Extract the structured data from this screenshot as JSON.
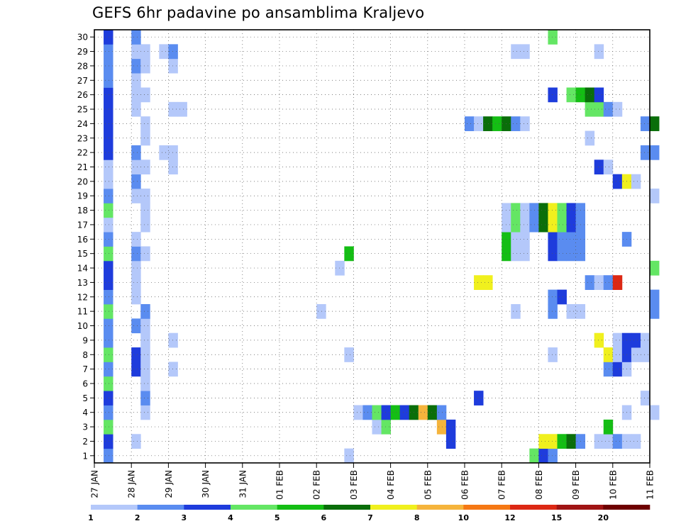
{
  "title": "GEFS 6hr padavine po ansamblima Kraljevo",
  "chart_data": {
    "type": "heatmap",
    "title": "GEFS 6hr padavine po ansamblima Kraljevo",
    "x_start": "2014-01-27 00",
    "x_end": "2014-02-11 00",
    "x_step_hours": 6,
    "x_tick_labels": [
      "27 JAN",
      "28 JAN",
      "29 JAN",
      "30 JAN",
      "31 JAN",
      "01 FEB",
      "02 FEB",
      "03 FEB",
      "04 FEB",
      "05 FEB",
      "06 FEB",
      "07 FEB",
      "08 FEB",
      "09 FEB",
      "10 FEB",
      "11 FEB"
    ],
    "y_tick_labels": [
      "1",
      "2",
      "3",
      "4",
      "5",
      "6",
      "7",
      "8",
      "9",
      "10",
      "11",
      "12",
      "13",
      "14",
      "15",
      "16",
      "17",
      "18",
      "19",
      "20",
      "21",
      "22",
      "23",
      "24",
      "25",
      "26",
      "27",
      "28",
      "29",
      "30"
    ],
    "ylim": [
      0.5,
      30.5
    ],
    "legend_levels": [
      "1",
      "2",
      "3",
      "4",
      "5",
      "6",
      "7",
      "8",
      "10",
      "12",
      "15",
      "20"
    ],
    "legend_colors": [
      "#b4c8fa",
      "#5a8cf0",
      "#1e3cdc",
      "#64e664",
      "#14be14",
      "#0a6e0a",
      "#f0f01e",
      "#f5b43c",
      "#f57814",
      "#dc2814",
      "#a01414",
      "#6e0000"
    ],
    "cells": [
      [
        1,
        0.25,
        2
      ],
      [
        1,
        6.75,
        1
      ],
      [
        1,
        11.75,
        4
      ],
      [
        1,
        12,
        3
      ],
      [
        1,
        12.25,
        2
      ],
      [
        2,
        0.25,
        3
      ],
      [
        2,
        1,
        1
      ],
      [
        2,
        9.5,
        3
      ],
      [
        2,
        12,
        7
      ],
      [
        2,
        12.25,
        7
      ],
      [
        2,
        12.5,
        5
      ],
      [
        2,
        12.75,
        6
      ],
      [
        2,
        13,
        2
      ],
      [
        2,
        13.5,
        1
      ],
      [
        2,
        13.75,
        1
      ],
      [
        2,
        14,
        2
      ],
      [
        2,
        14.25,
        1
      ],
      [
        2,
        14.5,
        1
      ],
      [
        3,
        0.25,
        4
      ],
      [
        3,
        7.5,
        1
      ],
      [
        3,
        7.75,
        4
      ],
      [
        3,
        9.25,
        8
      ],
      [
        3,
        9.5,
        3
      ],
      [
        3,
        13.75,
        5
      ],
      [
        4,
        0.25,
        2
      ],
      [
        4,
        1.25,
        1
      ],
      [
        4,
        7,
        1
      ],
      [
        4,
        7.25,
        2
      ],
      [
        4,
        7.5,
        4
      ],
      [
        4,
        7.75,
        3
      ],
      [
        4,
        8,
        5
      ],
      [
        4,
        8.25,
        3
      ],
      [
        4,
        8.5,
        6
      ],
      [
        4,
        8.75,
        8
      ],
      [
        4,
        9,
        6
      ],
      [
        4,
        9.25,
        2
      ],
      [
        4,
        14.25,
        1
      ],
      [
        4,
        15,
        1
      ],
      [
        5,
        0.25,
        3
      ],
      [
        5,
        1.25,
        2
      ],
      [
        5,
        10.25,
        3
      ],
      [
        5,
        14.75,
        1
      ],
      [
        6,
        0.25,
        4
      ],
      [
        6,
        1.25,
        1
      ],
      [
        7,
        0.25,
        2
      ],
      [
        7,
        1,
        3
      ],
      [
        7,
        1.25,
        1
      ],
      [
        7,
        2,
        1
      ],
      [
        7,
        13.75,
        2
      ],
      [
        7,
        14,
        3
      ],
      [
        7,
        14.25,
        1
      ],
      [
        8,
        0.25,
        4
      ],
      [
        8,
        1,
        3
      ],
      [
        8,
        1.25,
        1
      ],
      [
        8,
        6.75,
        1
      ],
      [
        8,
        12.25,
        1
      ],
      [
        8,
        13.75,
        7
      ],
      [
        8,
        14,
        1
      ],
      [
        8,
        14.25,
        3
      ],
      [
        8,
        14.5,
        1
      ],
      [
        8,
        14.75,
        1
      ],
      [
        9,
        0.25,
        2
      ],
      [
        9,
        1.25,
        1
      ],
      [
        9,
        2,
        1
      ],
      [
        9,
        13.5,
        7
      ],
      [
        9,
        14,
        1
      ],
      [
        9,
        14.25,
        3
      ],
      [
        9,
        14.5,
        3
      ],
      [
        9,
        14.75,
        1
      ],
      [
        10,
        0.25,
        2
      ],
      [
        10,
        1,
        2
      ],
      [
        10,
        1.25,
        1
      ],
      [
        11,
        0.25,
        4
      ],
      [
        11,
        1.25,
        2
      ],
      [
        11,
        6,
        1
      ],
      [
        11,
        11.25,
        1
      ],
      [
        11,
        12.25,
        2
      ],
      [
        11,
        12.75,
        1
      ],
      [
        11,
        13,
        1
      ],
      [
        11,
        15,
        2
      ],
      [
        12,
        0.25,
        2
      ],
      [
        12,
        1,
        1
      ],
      [
        12,
        12.25,
        2
      ],
      [
        12,
        12.5,
        3
      ],
      [
        12,
        15,
        2
      ],
      [
        13,
        0.25,
        3
      ],
      [
        13,
        1,
        1
      ],
      [
        13,
        10.25,
        7
      ],
      [
        13,
        10.5,
        7
      ],
      [
        13,
        13.25,
        2
      ],
      [
        13,
        13.5,
        1
      ],
      [
        13,
        13.75,
        2
      ],
      [
        13,
        14,
        10
      ],
      [
        14,
        0.25,
        3
      ],
      [
        14,
        1,
        1
      ],
      [
        14,
        6.5,
        1
      ],
      [
        14,
        15,
        4
      ],
      [
        15,
        0.25,
        4
      ],
      [
        15,
        1,
        2
      ],
      [
        15,
        1.25,
        1
      ],
      [
        15,
        6.75,
        5
      ],
      [
        15,
        11,
        5
      ],
      [
        15,
        11.25,
        1
      ],
      [
        15,
        11.5,
        1
      ],
      [
        15,
        12.25,
        3
      ],
      [
        15,
        12.5,
        2
      ],
      [
        15,
        12.75,
        2
      ],
      [
        15,
        13,
        2
      ],
      [
        16,
        0.25,
        2
      ],
      [
        16,
        1,
        1
      ],
      [
        16,
        11,
        5
      ],
      [
        16,
        11.25,
        1
      ],
      [
        16,
        11.5,
        1
      ],
      [
        16,
        12.25,
        3
      ],
      [
        16,
        12.5,
        2
      ],
      [
        16,
        12.75,
        2
      ],
      [
        16,
        13,
        2
      ],
      [
        16,
        14.25,
        2
      ],
      [
        17,
        0.25,
        1
      ],
      [
        17,
        1.25,
        1
      ],
      [
        17,
        11,
        1
      ],
      [
        17,
        11.25,
        4
      ],
      [
        17,
        11.5,
        1
      ],
      [
        17,
        11.75,
        2
      ],
      [
        17,
        12,
        6
      ],
      [
        17,
        12.25,
        7
      ],
      [
        17,
        12.5,
        4
      ],
      [
        17,
        12.75,
        3
      ],
      [
        17,
        13,
        2
      ],
      [
        18,
        0.25,
        4
      ],
      [
        18,
        1.25,
        1
      ],
      [
        18,
        11,
        1
      ],
      [
        18,
        11.25,
        4
      ],
      [
        18,
        11.5,
        1
      ],
      [
        18,
        11.75,
        2
      ],
      [
        18,
        12,
        6
      ],
      [
        18,
        12.25,
        7
      ],
      [
        18,
        12.5,
        4
      ],
      [
        18,
        12.75,
        3
      ],
      [
        18,
        13,
        2
      ],
      [
        19,
        0.25,
        2
      ],
      [
        19,
        1,
        1
      ],
      [
        19,
        1.25,
        1
      ],
      [
        19,
        15,
        1
      ],
      [
        20,
        0.25,
        1
      ],
      [
        20,
        1,
        2
      ],
      [
        20,
        14,
        3
      ],
      [
        20,
        14.25,
        7
      ],
      [
        20,
        14.5,
        1
      ],
      [
        21,
        0.25,
        1
      ],
      [
        21,
        1,
        1
      ],
      [
        21,
        1.25,
        1
      ],
      [
        21,
        2,
        1
      ],
      [
        21,
        13.5,
        3
      ],
      [
        21,
        13.75,
        1
      ],
      [
        22,
        0.25,
        3
      ],
      [
        22,
        1,
        2
      ],
      [
        22,
        1.75,
        1
      ],
      [
        22,
        2,
        1
      ],
      [
        22,
        14.75,
        2
      ],
      [
        22,
        15,
        2
      ],
      [
        23,
        0.25,
        3
      ],
      [
        23,
        1.25,
        1
      ],
      [
        23,
        13.25,
        1
      ],
      [
        24,
        0.25,
        3
      ],
      [
        24,
        1.25,
        1
      ],
      [
        24,
        10,
        2
      ],
      [
        24,
        10.25,
        1
      ],
      [
        24,
        10.5,
        6
      ],
      [
        24,
        10.75,
        5
      ],
      [
        24,
        11,
        6
      ],
      [
        24,
        11.25,
        2
      ],
      [
        24,
        11.5,
        1
      ],
      [
        24,
        14.75,
        2
      ],
      [
        24,
        15,
        6
      ],
      [
        25,
        0.25,
        3
      ],
      [
        25,
        1,
        1
      ],
      [
        25,
        2,
        1
      ],
      [
        25,
        2.25,
        1
      ],
      [
        25,
        13.25,
        4
      ],
      [
        25,
        13.5,
        4
      ],
      [
        25,
        13.75,
        2
      ],
      [
        25,
        14,
        1
      ],
      [
        26,
        0.25,
        3
      ],
      [
        26,
        1,
        1
      ],
      [
        26,
        1.25,
        1
      ],
      [
        26,
        12.25,
        3
      ],
      [
        26,
        12.75,
        4
      ],
      [
        26,
        13,
        5
      ],
      [
        26,
        13.25,
        6
      ],
      [
        26,
        13.5,
        3
      ],
      [
        27,
        0.25,
        2
      ],
      [
        27,
        1,
        1
      ],
      [
        28,
        0.25,
        2
      ],
      [
        28,
        1,
        2
      ],
      [
        28,
        1.25,
        1
      ],
      [
        28,
        2,
        1
      ],
      [
        29,
        0.25,
        2
      ],
      [
        29,
        1,
        1
      ],
      [
        29,
        1.25,
        1
      ],
      [
        29,
        1.75,
        1
      ],
      [
        29,
        2,
        2
      ],
      [
        29,
        11.25,
        1
      ],
      [
        29,
        11.5,
        1
      ],
      [
        29,
        13.5,
        1
      ],
      [
        30,
        0.25,
        3
      ],
      [
        30,
        1,
        2
      ],
      [
        30,
        12.25,
        4
      ]
    ]
  }
}
